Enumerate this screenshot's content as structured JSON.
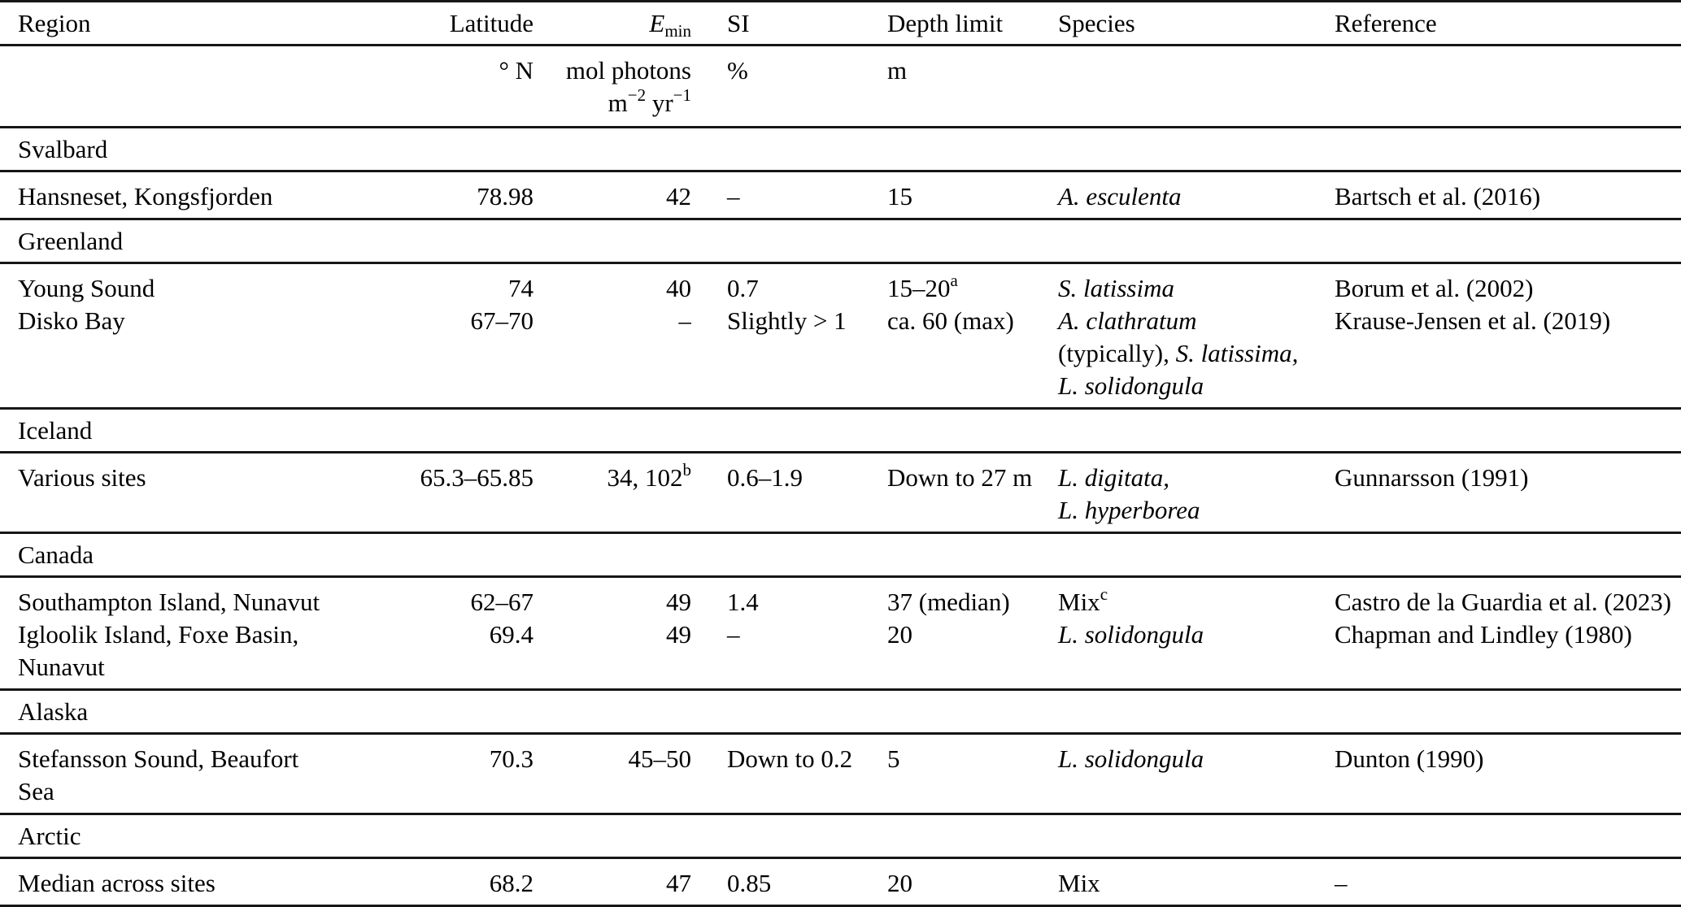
{
  "colors": {
    "text": "#000000",
    "rule": "#161616",
    "background": "#ffffff"
  },
  "table": {
    "column_keys": [
      "region",
      "latitude",
      "emin",
      "si",
      "depth",
      "species",
      "reference"
    ],
    "header": {
      "region": [
        {
          "t": "Region"
        }
      ],
      "latitude": [
        {
          "t": "Latitude"
        }
      ],
      "emin": [
        {
          "t": "E",
          "i": true
        },
        {
          "t": "min",
          "sub": true
        }
      ],
      "si": [
        {
          "t": "SI"
        }
      ],
      "depth": [
        {
          "t": "Depth limit"
        }
      ],
      "species": [
        {
          "t": "Species"
        }
      ],
      "reference": [
        {
          "t": "Reference"
        }
      ]
    },
    "units": {
      "region": [],
      "latitude": [
        {
          "t": "° N"
        }
      ],
      "emin": [
        {
          "t": "mol photons"
        },
        {
          "br": true
        },
        {
          "t": "m"
        },
        {
          "t": "−2",
          "sup": true
        },
        {
          "t": " yr"
        },
        {
          "t": "−1",
          "sup": true
        }
      ],
      "si": [
        {
          "t": "%"
        }
      ],
      "depth": [
        {
          "t": "m"
        }
      ],
      "species": [],
      "reference": []
    },
    "sections": [
      {
        "name": "Svalbard",
        "rows": [
          {
            "region": [
              {
                "t": "Hansneset, Kongsfjorden"
              }
            ],
            "latitude": [
              {
                "t": "78.98"
              }
            ],
            "emin": [
              {
                "t": "42"
              }
            ],
            "si": [
              {
                "t": "–"
              }
            ],
            "depth": [
              {
                "t": "15"
              }
            ],
            "species": [
              {
                "t": "A. esculenta",
                "i": true
              }
            ],
            "reference": [
              {
                "t": "Bartsch et al. (2016)"
              }
            ]
          }
        ]
      },
      {
        "name": "Greenland",
        "rows": [
          {
            "region": [
              {
                "t": "Young Sound"
              }
            ],
            "latitude": [
              {
                "t": "74"
              }
            ],
            "emin": [
              {
                "t": "40"
              }
            ],
            "si": [
              {
                "t": "0.7"
              }
            ],
            "depth": [
              {
                "t": "15–20"
              },
              {
                "t": "a",
                "sup": true
              }
            ],
            "species": [
              {
                "t": "S. latissima",
                "i": true
              }
            ],
            "reference": [
              {
                "t": "Borum et al. (2002)"
              }
            ]
          },
          {
            "region": [
              {
                "t": "Disko Bay"
              }
            ],
            "latitude": [
              {
                "t": "67–70"
              }
            ],
            "emin": [
              {
                "t": "–"
              }
            ],
            "si": [
              {
                "t": "Slightly > 1"
              }
            ],
            "depth": [
              {
                "t": "ca. 60 (max)"
              }
            ],
            "species": [
              {
                "t": "A. clathratum",
                "i": true
              },
              {
                "br": true
              },
              {
                "t": "(typically), "
              },
              {
                "t": "S. latissima,",
                "i": true
              },
              {
                "br": true
              },
              {
                "t": "L. solidongula",
                "i": true
              }
            ],
            "reference": [
              {
                "t": "Krause-Jensen et al. (2019)"
              }
            ]
          }
        ]
      },
      {
        "name": "Iceland",
        "rows": [
          {
            "region": [
              {
                "t": "Various sites"
              }
            ],
            "latitude": [
              {
                "t": "65.3–65.85"
              }
            ],
            "emin": [
              {
                "t": "34, 102"
              },
              {
                "t": "b",
                "sup": true
              }
            ],
            "si": [
              {
                "t": "0.6–1.9"
              }
            ],
            "depth": [
              {
                "t": "Down to 27 m"
              }
            ],
            "species": [
              {
                "t": "L. digitata,",
                "i": true
              },
              {
                "br": true
              },
              {
                "t": "L. hyperborea",
                "i": true
              }
            ],
            "reference": [
              {
                "t": "Gunnarsson (1991)"
              }
            ]
          }
        ]
      },
      {
        "name": "Canada",
        "rows": [
          {
            "region": [
              {
                "t": "Southampton Island, Nunavut"
              }
            ],
            "latitude": [
              {
                "t": "62–67"
              }
            ],
            "emin": [
              {
                "t": "49"
              }
            ],
            "si": [
              {
                "t": "1.4"
              }
            ],
            "depth": [
              {
                "t": "37 (median)"
              }
            ],
            "species": [
              {
                "t": "Mix"
              },
              {
                "t": "c",
                "sup": true
              }
            ],
            "reference": [
              {
                "t": "Castro de la Guardia et al. (2023)"
              }
            ]
          },
          {
            "region": [
              {
                "t": "Igloolik Island, Foxe Basin, Nunavut"
              }
            ],
            "latitude": [
              {
                "t": "69.4"
              }
            ],
            "emin": [
              {
                "t": "49"
              }
            ],
            "si": [
              {
                "t": "–"
              }
            ],
            "depth": [
              {
                "t": "20"
              }
            ],
            "species": [
              {
                "t": "L. solidongula",
                "i": true
              }
            ],
            "reference": [
              {
                "t": "Chapman and Lindley (1980)"
              }
            ]
          }
        ]
      },
      {
        "name": "Alaska",
        "rows": [
          {
            "region": [
              {
                "t": "Stefansson Sound, Beaufort Sea"
              }
            ],
            "latitude": [
              {
                "t": "70.3"
              }
            ],
            "emin": [
              {
                "t": "45–50"
              }
            ],
            "si": [
              {
                "t": "Down to 0.2"
              }
            ],
            "depth": [
              {
                "t": "5"
              }
            ],
            "species": [
              {
                "t": "L. solidongula",
                "i": true
              }
            ],
            "reference": [
              {
                "t": "Dunton (1990)"
              }
            ]
          }
        ]
      },
      {
        "name": "Arctic",
        "rows": [
          {
            "region": [
              {
                "t": "Median across sites"
              }
            ],
            "latitude": [
              {
                "t": "68.2"
              }
            ],
            "emin": [
              {
                "t": "47"
              }
            ],
            "si": [
              {
                "t": "0.85"
              }
            ],
            "depth": [
              {
                "t": "20"
              }
            ],
            "species": [
              {
                "t": "Mix"
              }
            ],
            "reference": [
              {
                "t": "–"
              }
            ]
          }
        ]
      }
    ]
  }
}
